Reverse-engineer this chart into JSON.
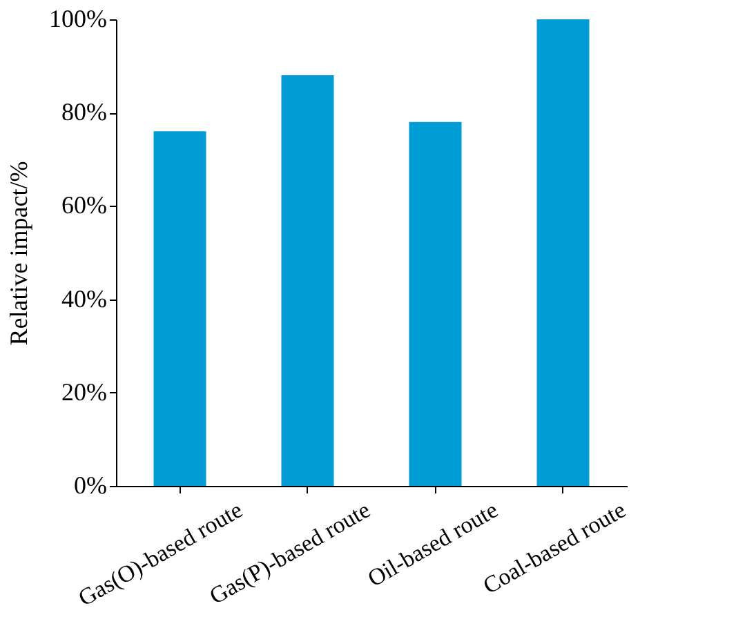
{
  "chart_data": {
    "type": "bar",
    "ylabel": "Relative impact/%",
    "categories": [
      "Gas(O)-based route",
      "Gas(P)-based route",
      "Oil-based route",
      "Coal-based route"
    ],
    "values": [
      76,
      88,
      78,
      100
    ],
    "color": "#009cd6",
    "ylim": [
      0,
      100
    ],
    "yticks": [
      {
        "value": 0,
        "label": "0%"
      },
      {
        "value": 20,
        "label": "20%"
      },
      {
        "value": 40,
        "label": "40%"
      },
      {
        "value": 60,
        "label": "60%"
      },
      {
        "value": 80,
        "label": "80%"
      },
      {
        "value": 100,
        "label": "100%"
      }
    ],
    "grid": false
  }
}
